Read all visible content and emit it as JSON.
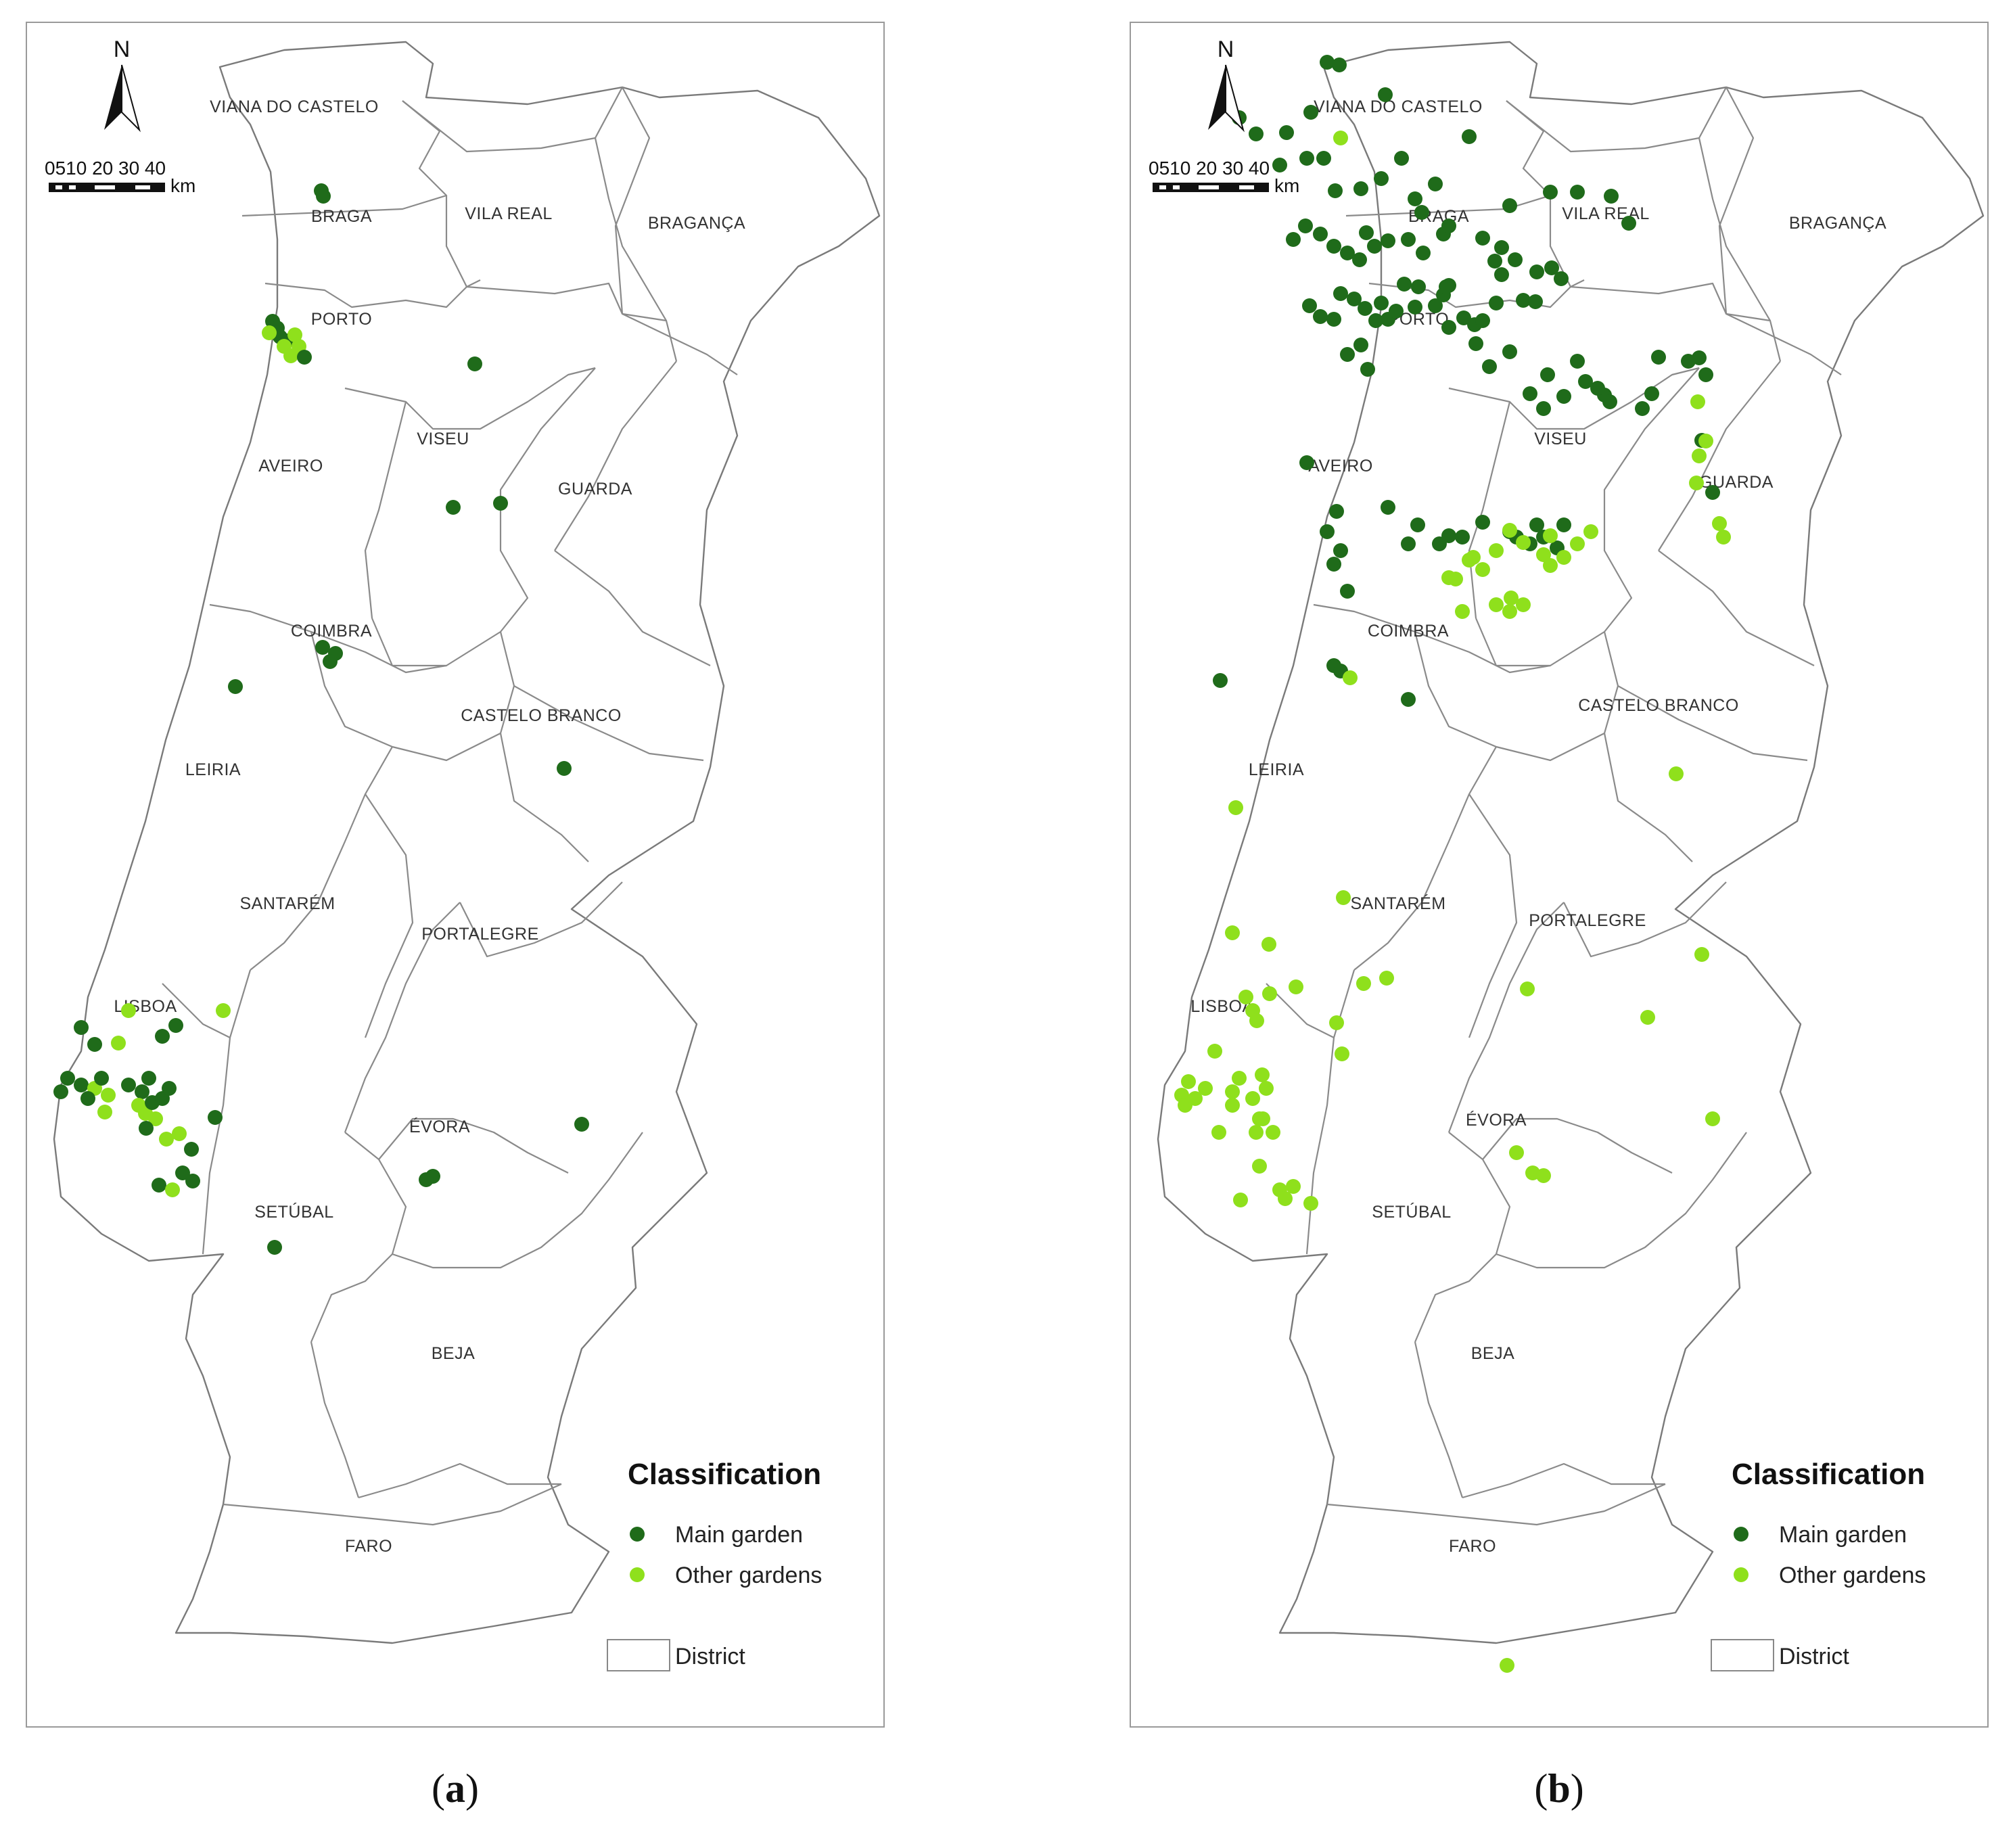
{
  "colors": {
    "main_garden": "#1f6b1a",
    "other_gardens": "#8fe01c",
    "border": "#8a8a8a"
  },
  "panels": [
    {
      "id": "a",
      "caption_letter": "a",
      "north": "N",
      "scale": {
        "ticks": "0510 20 30 40",
        "unit": "km"
      },
      "legend": {
        "title": "Classification",
        "main": "Main garden",
        "other": "Other gardens",
        "district": "District"
      },
      "districts": [
        "VIANA DO CASTELO",
        "BRAGA",
        "VILA REAL",
        "BRAGANÇA",
        "PORTO",
        "AVEIRO",
        "VISEU",
        "GUARDA",
        "COIMBRA",
        "CASTELO BRANCO",
        "LEIRIA",
        "SANTARÉM",
        "PORTALEGRE",
        "LISBOA",
        "ÉVORA",
        "SETÚBAL",
        "BEJA",
        "FARO"
      ],
      "icon": "north-arrow-icon"
    },
    {
      "id": "b",
      "caption_letter": "b",
      "north": "N",
      "scale": {
        "ticks": "0510 20 30 40",
        "unit": "km"
      },
      "legend": {
        "title": "Classification",
        "main": "Main garden",
        "other": "Other gardens",
        "district": "District"
      },
      "districts": [
        "VIANA DO CASTELO",
        "BRAGA",
        "VILA REAL",
        "BRAGANÇA",
        "PORTO",
        "AVEIRO",
        "VISEU",
        "GUARDA",
        "COIMBRA",
        "CASTELO BRANCO",
        "LEIRIA",
        "SANTARÉM",
        "PORTALEGRE",
        "LISBOA",
        "ÉVORA",
        "SETÚBAL",
        "BEJA",
        "FARO"
      ],
      "icon": "north-arrow-icon"
    }
  ]
}
